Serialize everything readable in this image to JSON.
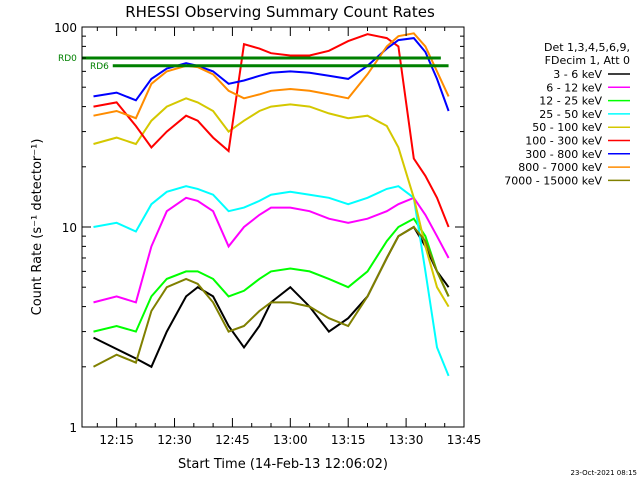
{
  "chart_data": {
    "type": "line",
    "title": "RHESSI Observing Summary Count Rates",
    "xlabel": "Start Time (14-Feb-13 12:06:02)",
    "ylabel": "Count Rate (s⁻¹ detector⁻¹)",
    "x_ticks": [
      "12:15",
      "12:30",
      "12:45",
      "13:00",
      "13:15",
      "13:30",
      "13:45"
    ],
    "x_tick_minutes": [
      15,
      30,
      45,
      60,
      75,
      90,
      105
    ],
    "y_scale": "log",
    "y_ticks": [
      "1",
      "10",
      "100"
    ],
    "y_tick_values": [
      1,
      10,
      100
    ],
    "ylim": [
      1,
      100
    ],
    "xlim_minutes": [
      6.03,
      105
    ],
    "x_units": "minutes after 12:00",
    "legend_header": [
      "Det 1,3,4,5,6,9,",
      "FDecim 1, Att 0"
    ],
    "flag_labels": [
      "RD0",
      "RD6"
    ],
    "footer": "23-Oct-2021 08:15",
    "series": [
      {
        "name": "3 - 6 keV",
        "color": "#000000",
        "x": [
          9,
          20,
          24,
          28,
          33,
          36,
          40,
          44,
          48,
          52,
          55,
          60,
          65,
          70,
          75,
          80,
          85,
          88,
          92,
          95,
          98,
          101
        ],
        "y": [
          2.8,
          2.2,
          2.0,
          3.0,
          4.5,
          5.0,
          4.5,
          3.2,
          2.5,
          3.2,
          4.2,
          5.0,
          4.0,
          3.0,
          3.5,
          4.5,
          7.0,
          9.0,
          10.0,
          8.0,
          6.0,
          5.0
        ]
      },
      {
        "name": "6 - 12 keV",
        "color": "#ff00ff",
        "x": [
          9,
          15,
          20,
          24,
          28,
          33,
          36,
          40,
          44,
          48,
          52,
          55,
          60,
          65,
          70,
          75,
          80,
          85,
          88,
          92,
          95,
          98,
          101
        ],
        "y": [
          4.2,
          4.5,
          4.2,
          8.0,
          12.0,
          14.0,
          13.5,
          12.0,
          8.0,
          10.0,
          11.5,
          12.5,
          12.5,
          12.0,
          11.0,
          10.5,
          11.0,
          12.0,
          13.0,
          14.0,
          11.5,
          9.0,
          7.0
        ]
      },
      {
        "name": "12 - 25 keV",
        "color": "#00ff00",
        "x": [
          9,
          15,
          20,
          24,
          28,
          33,
          36,
          40,
          44,
          48,
          52,
          55,
          60,
          65,
          70,
          75,
          80,
          85,
          88,
          92,
          95,
          98,
          101
        ],
        "y": [
          3.0,
          3.2,
          3.0,
          4.5,
          5.5,
          6.0,
          6.0,
          5.5,
          4.5,
          4.8,
          5.5,
          6.0,
          6.2,
          6.0,
          5.5,
          5.0,
          6.0,
          8.5,
          10.0,
          11.0,
          9.0,
          6.0,
          4.5
        ]
      },
      {
        "name": "25 - 50 keV",
        "color": "#00ffff",
        "x": [
          9,
          15,
          20,
          24,
          28,
          33,
          36,
          40,
          44,
          48,
          52,
          55,
          60,
          65,
          70,
          75,
          80,
          85,
          88,
          92,
          95,
          98,
          101
        ],
        "y": [
          10.0,
          10.5,
          9.5,
          13.0,
          15.0,
          16.0,
          15.5,
          14.5,
          12.0,
          12.5,
          13.5,
          14.5,
          15.0,
          14.5,
          14.0,
          13.0,
          14.0,
          15.5,
          16.0,
          14.0,
          6.0,
          2.5,
          1.8
        ]
      },
      {
        "name": "50 - 100 keV",
        "color": "#d4c800",
        "x": [
          9,
          15,
          20,
          24,
          28,
          33,
          36,
          40,
          44,
          48,
          52,
          55,
          60,
          65,
          70,
          75,
          80,
          85,
          88,
          92,
          95,
          98,
          101
        ],
        "y": [
          26,
          28,
          26,
          34,
          40,
          44,
          42,
          38,
          30,
          34,
          38,
          40,
          41,
          40,
          37,
          35,
          36,
          32,
          25,
          14,
          8,
          5,
          4
        ]
      },
      {
        "name": "100 - 300 keV",
        "color": "#ff0000",
        "x": [
          9,
          15,
          20,
          24,
          28,
          33,
          36,
          40,
          44,
          48,
          52,
          55,
          60,
          65,
          70,
          75,
          80,
          85,
          88,
          92,
          95,
          98,
          101
        ],
        "y": [
          40,
          42,
          32,
          25,
          30,
          36,
          34,
          28,
          24,
          82,
          78,
          74,
          72,
          72,
          76,
          85,
          92,
          88,
          80,
          22,
          18,
          14,
          10
        ]
      },
      {
        "name": "300 - 800 keV",
        "color": "#0000ff",
        "x": [
          9,
          15,
          20,
          24,
          28,
          33,
          36,
          40,
          44,
          48,
          52,
          55,
          60,
          65,
          70,
          75,
          80,
          85,
          88,
          92,
          95,
          98,
          101
        ],
        "y": [
          45,
          47,
          43,
          55,
          62,
          66,
          64,
          60,
          52,
          54,
          57,
          59,
          60,
          59,
          57,
          55,
          64,
          78,
          86,
          88,
          75,
          55,
          38
        ]
      },
      {
        "name": "800 - 7000 keV",
        "color": "#ff8c00",
        "x": [
          9,
          15,
          20,
          24,
          28,
          33,
          36,
          40,
          44,
          48,
          52,
          55,
          60,
          65,
          70,
          75,
          80,
          85,
          88,
          92,
          95,
          98,
          101
        ],
        "y": [
          36,
          38,
          35,
          52,
          60,
          64,
          63,
          58,
          48,
          44,
          46,
          48,
          49,
          48,
          46,
          44,
          58,
          80,
          90,
          93,
          80,
          60,
          45
        ]
      },
      {
        "name": "7000 - 15000 keV",
        "color": "#808000",
        "x": [
          9,
          15,
          20,
          24,
          28,
          33,
          36,
          40,
          44,
          48,
          52,
          55,
          60,
          65,
          70,
          75,
          80,
          85,
          88,
          92,
          95,
          98,
          101
        ],
        "y": [
          2.0,
          2.3,
          2.1,
          3.8,
          5.0,
          5.5,
          5.2,
          4.2,
          3.0,
          3.2,
          3.8,
          4.2,
          4.2,
          4.0,
          3.5,
          3.2,
          4.5,
          7.0,
          9.0,
          10.0,
          8.5,
          6.0,
          4.5
        ]
      }
    ],
    "flags": [
      {
        "name": "RD0",
        "color": "#008000",
        "y": 70,
        "x": [
          6.03,
          99
        ]
      },
      {
        "name": "RD6",
        "color": "#008000",
        "y": 64,
        "x": [
          14,
          101
        ]
      }
    ]
  }
}
